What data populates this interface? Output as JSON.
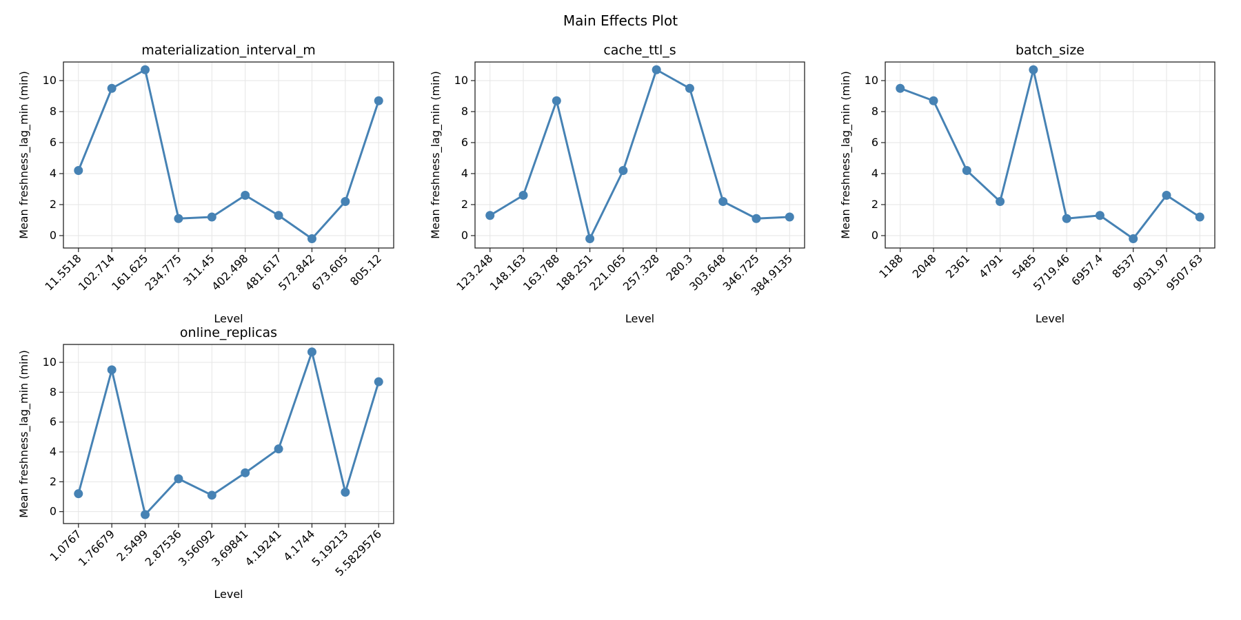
{
  "chart_data": {
    "title": "Main Effects Plot",
    "line_color": "#4682b4",
    "grid": true,
    "panels": [
      {
        "type": "line",
        "title": "materialization_interval_m",
        "xlabel": "Level",
        "ylabel": "Mean freshness_lag_min (min)",
        "categories": [
          "11.5518",
          "102.714",
          "161.625",
          "234.775",
          "311.45",
          "402.498",
          "481.617",
          "572.842",
          "673.605",
          "805.12"
        ],
        "values": [
          4.2,
          9.5,
          10.7,
          1.1,
          1.2,
          2.6,
          1.3,
          -0.2,
          2.2,
          8.7
        ],
        "yticks": [
          0,
          2,
          4,
          6,
          8,
          10
        ],
        "ylim": [
          -0.8,
          11.2
        ]
      },
      {
        "type": "line",
        "title": "cache_ttl_s",
        "xlabel": "Level",
        "ylabel": "Mean freshness_lag_min (min)",
        "categories": [
          "123.248",
          "148.163",
          "163.788",
          "188.251",
          "221.065",
          "257.328",
          "280.3",
          "303.648",
          "346.725",
          "384.9135"
        ],
        "values": [
          1.3,
          2.6,
          8.7,
          -0.2,
          4.2,
          10.7,
          9.5,
          2.2,
          1.1,
          1.2
        ],
        "yticks": [
          0,
          2,
          4,
          6,
          8,
          10
        ],
        "ylim": [
          -0.8,
          11.2
        ]
      },
      {
        "type": "line",
        "title": "batch_size",
        "xlabel": "Level",
        "ylabel": "Mean freshness_lag_min (min)",
        "categories": [
          "1188",
          "2048",
          "2361",
          "4791",
          "5485",
          "5719.46",
          "6957.4",
          "8537",
          "9031.97",
          "9507.63"
        ],
        "values": [
          9.5,
          8.7,
          4.2,
          2.2,
          10.7,
          1.1,
          1.3,
          -0.2,
          2.6,
          1.2
        ],
        "yticks": [
          0,
          2,
          4,
          6,
          8,
          10
        ],
        "ylim": [
          -0.8,
          11.2
        ]
      },
      {
        "type": "line",
        "title": "online_replicas",
        "xlabel": "Level",
        "ylabel": "Mean freshness_lag_min (min)",
        "categories": [
          "1.0767",
          "1.76679",
          "2.5499",
          "2.87536",
          "3.56092",
          "3.69841",
          "4.19241",
          "4.1744",
          "5.19213",
          "5.5829576"
        ],
        "values": [
          1.2,
          9.5,
          -0.2,
          2.2,
          1.1,
          2.6,
          4.2,
          10.7,
          1.3,
          8.7
        ],
        "yticks": [
          0,
          2,
          4,
          6,
          8,
          10
        ],
        "ylim": [
          -0.8,
          11.2
        ]
      }
    ]
  }
}
